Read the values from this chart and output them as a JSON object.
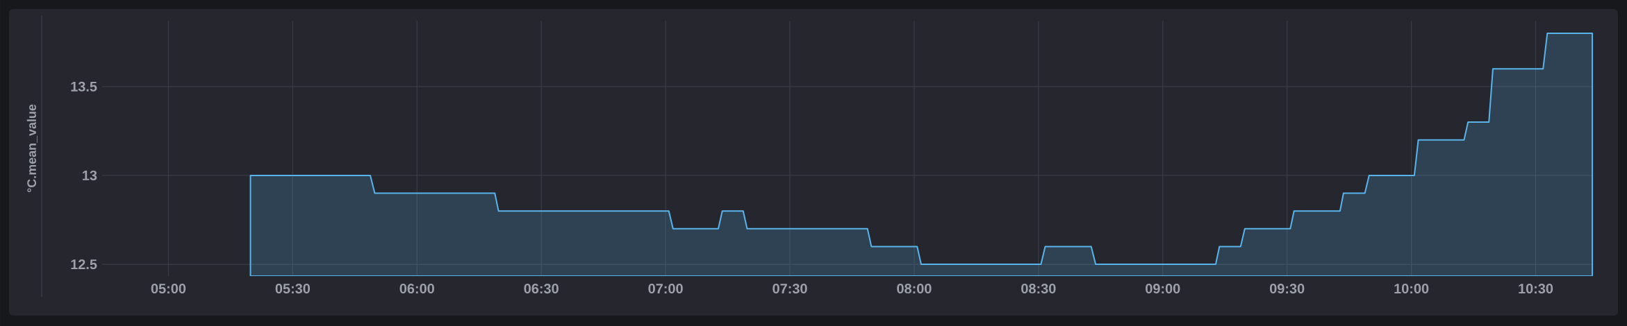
{
  "chart_data": {
    "type": "area",
    "ylabel": "°C.mean_value",
    "x": [
      5.33,
      5.812,
      5.83,
      6.313,
      6.328,
      7.013,
      7.03,
      7.212,
      7.228,
      7.312,
      7.328,
      7.812,
      7.828,
      8.012,
      8.028,
      8.51,
      8.527,
      8.712,
      8.73,
      9.213,
      9.228,
      9.313,
      9.33,
      9.513,
      9.528,
      9.713,
      9.727,
      9.813,
      9.83,
      10.012,
      10.028,
      10.212,
      10.228,
      10.312,
      10.328,
      10.53,
      10.547,
      10.728
    ],
    "series": [
      {
        "color": "#5ab4ec",
        "values": [
          13.0,
          13.0,
          12.9,
          12.9,
          12.8,
          12.8,
          12.7,
          12.7,
          12.8,
          12.8,
          12.7,
          12.7,
          12.6,
          12.6,
          12.5,
          12.5,
          12.6,
          12.6,
          12.5,
          12.5,
          12.6,
          12.6,
          12.7,
          12.7,
          12.8,
          12.8,
          12.9,
          12.9,
          13.0,
          13.0,
          13.2,
          13.2,
          13.3,
          13.3,
          13.6,
          13.6,
          13.8,
          13.8
        ]
      }
    ],
    "xlim": [
      4.7333,
      10.7333
    ],
    "ylim": [
      12.434,
      13.87
    ],
    "xticks": [
      {
        "value": 5,
        "label": "05:00"
      },
      {
        "value": 5.5,
        "label": "05:30"
      },
      {
        "value": 6,
        "label": "06:00"
      },
      {
        "value": 6.5,
        "label": "06:30"
      },
      {
        "value": 7,
        "label": "07:00"
      },
      {
        "value": 7.5,
        "label": "07:30"
      },
      {
        "value": 8,
        "label": "08:00"
      },
      {
        "value": 8.5,
        "label": "08:30"
      },
      {
        "value": 9,
        "label": "09:00"
      },
      {
        "value": 9.5,
        "label": "09:30"
      },
      {
        "value": 10,
        "label": "10:00"
      },
      {
        "value": 10.5,
        "label": "10:30"
      }
    ],
    "yticks": [
      12.5,
      13,
      13.5
    ],
    "grid": true
  }
}
